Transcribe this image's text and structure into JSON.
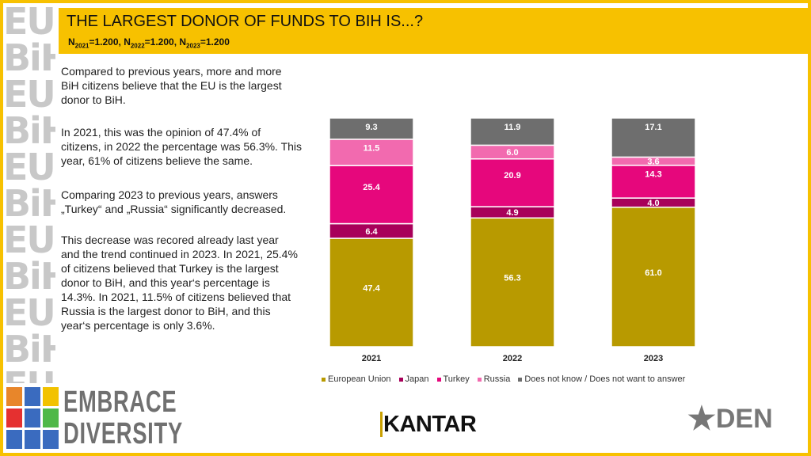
{
  "header": {
    "title": "THE LARGEST DONOR OF FUNDS TO BIH IS...?",
    "n": [
      {
        "label": "N",
        "sub": "2021",
        "value": "=1.200, "
      },
      {
        "label": "N",
        "sub": "2022",
        "value": "=1.200, "
      },
      {
        "label": "N",
        "sub": "2023",
        "value": "=1.200"
      }
    ]
  },
  "text": {
    "p1": "Compared to previous years, more and more BiH citizens believe that the EU is the largest donor to BiH.",
    "p2": "In 2021, this was the opinion of 47.4% of citizens, in 2022 the percentage was 56.3%. This year, 61% of citizens believe the same.",
    "p3": "Comparing 2023 to previous years, answers „Turkey“ and „Russia“ significantly decreased.",
    "p4": "This decrease was recored already last year and the trend continued in 2023. In 2021, 25.4% of citizens believed that Turkey is the largest donor to BiH, and this year‘s percentage is 14.3%. In 2021, 11.5% of citizens believed that Russia is the largest donor to BiH, and this year‘s percentage is only 3.6%."
  },
  "chart_data": {
    "type": "bar",
    "stacked": true,
    "categories": [
      "2021",
      "2022",
      "2023"
    ],
    "ylim": [
      0,
      100
    ],
    "series": [
      {
        "name": "European Union",
        "color": "#b89a00",
        "values": [
          47.4,
          56.3,
          61.0
        ]
      },
      {
        "name": "Japan",
        "color": "#a8005a",
        "values": [
          6.4,
          4.9,
          4.0
        ]
      },
      {
        "name": "Turkey",
        "color": "#e6077c",
        "values": [
          25.4,
          20.9,
          14.3
        ]
      },
      {
        "name": "Russia",
        "color": "#f26aaf",
        "values": [
          11.5,
          6.0,
          3.6
        ]
      },
      {
        "name": "Does not know / Does not want to answer",
        "color": "#6e6e6e",
        "values": [
          9.3,
          11.9,
          17.1
        ]
      }
    ],
    "legend": "bottom"
  },
  "logos": {
    "embrace": "EMBRACE DIVERSITY",
    "pattern": "EU BiH",
    "kantar": "KANTAR",
    "den": "DEN"
  },
  "colors": {
    "accent": "#f7c100"
  }
}
